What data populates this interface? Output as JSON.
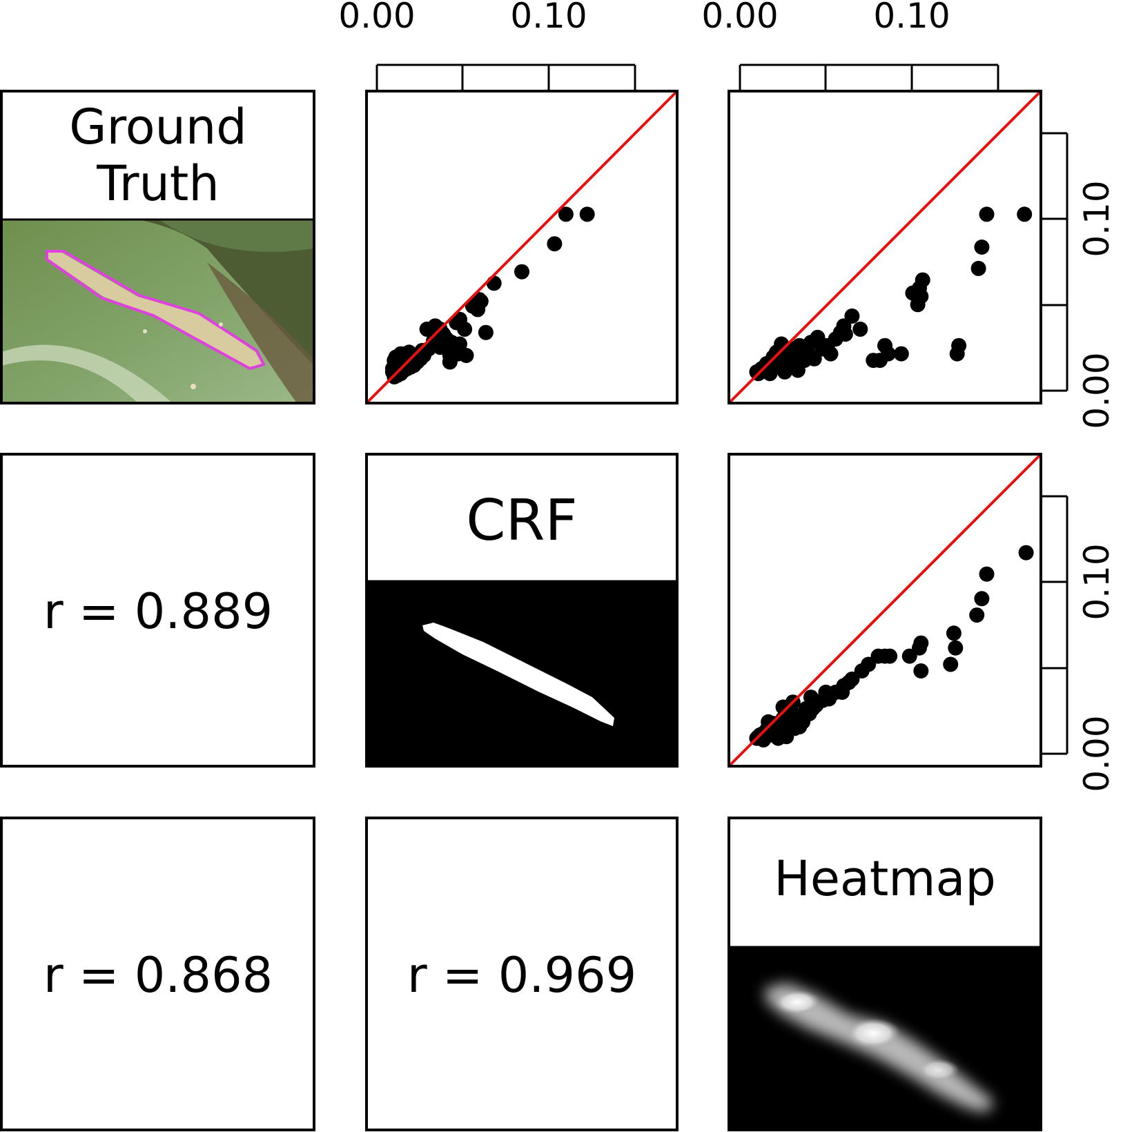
{
  "labels": {
    "ground_truth_line1": "Ground",
    "ground_truth_line2": "Truth",
    "crf": "CRF",
    "heatmap": "Heatmap"
  },
  "correlations": {
    "gt_crf": "r = 0.889",
    "gt_heatmap": "r = 0.868",
    "crf_heatmap": "r = 0.969"
  },
  "axes": {
    "top_ticks": [
      "0.00",
      "0.10"
    ],
    "right_ticks": [
      "0.00",
      "0.10"
    ]
  },
  "colors": {
    "identity_line": "#e8100d",
    "points": "#000000",
    "gt_outline": "#e040e0",
    "leaf_green": "#7a9a5c"
  },
  "chart_data": [
    {
      "type": "scatter",
      "panel": "row1-col2",
      "xlabel": "",
      "ylabel": "",
      "xlim": [
        -0.015,
        0.175
      ],
      "ylim": [
        -0.015,
        0.175
      ],
      "identity_line": true,
      "x": [
        0.12,
        0.107,
        0.1,
        0.08,
        0.063,
        0.054,
        0.055,
        0.053,
        0.05,
        0.058,
        0.042,
        0.046,
        0.041,
        0.036,
        0.03,
        0.03,
        0.026,
        0.022,
        0.037,
        0.036,
        0.027,
        0.023,
        0.019,
        0.034,
        0.032,
        0.04,
        0.042,
        0.045,
        0.014,
        0.013,
        0.011,
        0.009,
        0.01,
        0.007,
        0.008,
        0.006,
        0.005,
        0.004,
        0.003,
        0.002,
        0.002,
        0.001,
        0.002,
        0.004,
        0.006,
        0.008,
        0.01,
        0.012,
        0.014,
        0.016,
        0.018,
        0.02,
        0.003,
        0.005,
        0.006,
        0.003,
        0.001,
        0.002
      ],
      "y": [
        0.1,
        0.1,
        0.082,
        0.065,
        0.058,
        0.048,
        0.047,
        0.042,
        0.044,
        0.028,
        0.021,
        0.014,
        0.015,
        0.01,
        0.019,
        0.03,
        0.023,
        0.03,
        0.022,
        0.014,
        0.032,
        0.018,
        0.017,
        0.024,
        0.027,
        0.034,
        0.036,
        0.03,
        0.01,
        0.014,
        0.016,
        0.015,
        0.008,
        0.012,
        0.009,
        0.011,
        0.008,
        0.01,
        0.006,
        0.008,
        0.004,
        0.004,
        0.001,
        0.002,
        0.003,
        0.005,
        0.006,
        0.007,
        0.008,
        0.01,
        0.012,
        0.014,
        0.013,
        0.007,
        0.015,
        0.002,
        0.006,
        0.011
      ]
    },
    {
      "type": "scatter",
      "panel": "row1-col3",
      "xlabel": "",
      "ylabel": "",
      "xlim": [
        -0.015,
        0.175
      ],
      "ylim": [
        -0.015,
        0.175
      ],
      "identity_line": true,
      "x": [
        0.165,
        0.142,
        0.137,
        0.139,
        0.103,
        0.101,
        0.097,
        0.1,
        0.102,
        0.125,
        0.124,
        0.09,
        0.082,
        0.08,
        0.077,
        0.073,
        0.06,
        0.065,
        0.055,
        0.056,
        0.053,
        0.05,
        0.045,
        0.042,
        0.047,
        0.037,
        0.039,
        0.035,
        0.033,
        0.03,
        0.028,
        0.026,
        0.024,
        0.021,
        0.019,
        0.017,
        0.015,
        0.013,
        0.011,
        0.009,
        0.007,
        0.005,
        0.004,
        0.003,
        0.002,
        0.012,
        0.017,
        0.022,
        0.026,
        0.031,
        0.008,
        0.01,
        0.019,
        0.014,
        0.027,
        0.023
      ],
      "y": [
        0.1,
        0.1,
        0.067,
        0.08,
        0.06,
        0.055,
        0.052,
        0.045,
        0.05,
        0.02,
        0.015,
        0.015,
        0.015,
        0.02,
        0.011,
        0.011,
        0.038,
        0.03,
        0.032,
        0.027,
        0.028,
        0.024,
        0.02,
        0.018,
        0.015,
        0.012,
        0.025,
        0.022,
        0.016,
        0.014,
        0.02,
        0.01,
        0.018,
        0.012,
        0.007,
        0.015,
        0.009,
        0.011,
        0.006,
        0.008,
        0.005,
        0.006,
        0.004,
        0.003,
        0.004,
        0.013,
        0.021,
        0.016,
        0.008,
        0.011,
        0.009,
        0.003,
        0.004,
        0.016,
        0.005,
        0.012
      ]
    },
    {
      "type": "scatter",
      "panel": "row2-col3",
      "xlabel": "",
      "ylabel": "",
      "xlim": [
        -0.015,
        0.175
      ],
      "ylim": [
        -0.015,
        0.175
      ],
      "identity_line": true,
      "x": [
        0.166,
        0.142,
        0.136,
        0.139,
        0.122,
        0.123,
        0.12,
        0.102,
        0.101,
        0.095,
        0.102,
        0.083,
        0.08,
        0.076,
        0.07,
        0.066,
        0.06,
        0.058,
        0.055,
        0.054,
        0.05,
        0.046,
        0.044,
        0.042,
        0.038,
        0.036,
        0.034,
        0.032,
        0.03,
        0.028,
        0.026,
        0.024,
        0.022,
        0.02,
        0.018,
        0.016,
        0.014,
        0.012,
        0.01,
        0.008,
        0.006,
        0.004,
        0.003,
        0.002,
        0.006,
        0.01,
        0.015,
        0.02,
        0.025,
        0.03,
        0.012,
        0.018,
        0.024,
        0.035,
        0.009,
        0.028
      ],
      "y": [
        0.115,
        0.102,
        0.077,
        0.087,
        0.066,
        0.057,
        0.047,
        0.06,
        0.057,
        0.052,
        0.043,
        0.052,
        0.052,
        0.052,
        0.047,
        0.043,
        0.038,
        0.036,
        0.034,
        0.03,
        0.03,
        0.026,
        0.03,
        0.025,
        0.022,
        0.02,
        0.017,
        0.02,
        0.015,
        0.012,
        0.016,
        0.014,
        0.018,
        0.01,
        0.014,
        0.01,
        0.008,
        0.011,
        0.009,
        0.007,
        0.005,
        0.004,
        0.003,
        0.002,
        0.001,
        0.004,
        0.002,
        0.003,
        0.008,
        0.012,
        0.006,
        0.021,
        0.024,
        0.027,
        0.012,
        0.009
      ]
    }
  ]
}
